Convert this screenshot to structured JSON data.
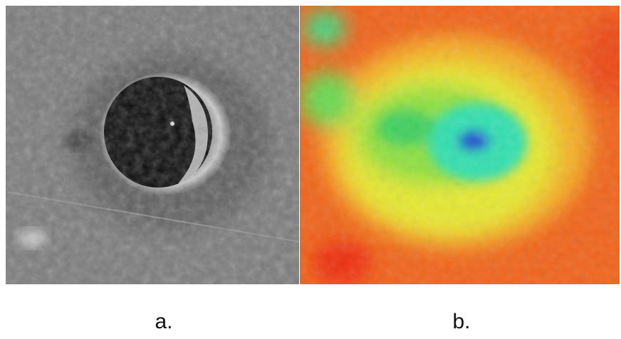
{
  "panels": [
    {
      "label": "a."
    },
    {
      "label": "b."
    }
  ]
}
